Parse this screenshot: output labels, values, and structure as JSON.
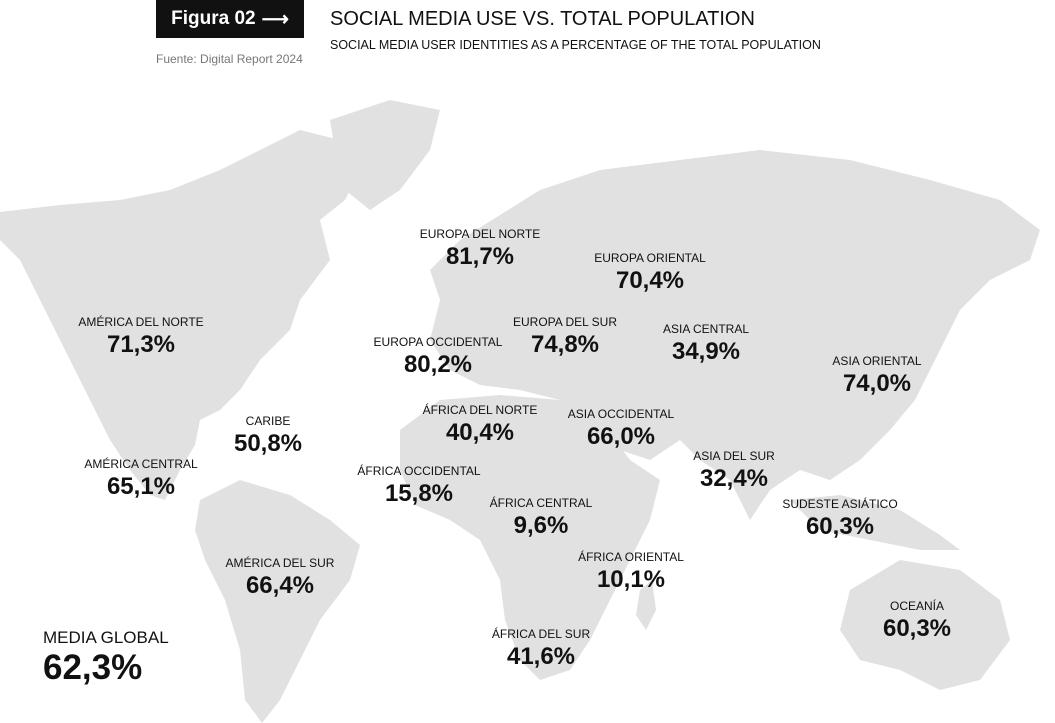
{
  "header": {
    "figure_label": "Figura 02",
    "arrow_icon": "right-arrow",
    "source": "Fuente: Digital Report 2024",
    "title": "SOCIAL MEDIA USE VS. TOTAL POPULATION",
    "subtitle": "SOCIAL MEDIA USER IDENTITIES AS A PERCENTAGE OF THE TOTAL POPULATION"
  },
  "colors": {
    "land": "#e1e1e1",
    "text": "#111111",
    "badge": "#111111"
  },
  "regions": [
    {
      "label": "EUROPA DEL NORTE",
      "value": "81,7%"
    },
    {
      "label": "EUROPA ORIENTAL",
      "value": "70,4%"
    },
    {
      "label": "AMÉRICA DEL NORTE",
      "value": "71,3%"
    },
    {
      "label": "EUROPA OCCIDENTAL",
      "value": "80,2%"
    },
    {
      "label": "EUROPA DEL SUR",
      "value": "74,8%"
    },
    {
      "label": "ASIA CENTRAL",
      "value": "34,9%"
    },
    {
      "label": "ASIA ORIENTAL",
      "value": "74,0%"
    },
    {
      "label": "CARIBE",
      "value": "50,8%"
    },
    {
      "label": "ÁFRICA DEL NORTE",
      "value": "40,4%"
    },
    {
      "label": "ASIA OCCIDENTAL",
      "value": "66,0%"
    },
    {
      "label": "AMÉRICA CENTRAL",
      "value": "65,1%"
    },
    {
      "label": "ÁFRICA OCCIDENTAL",
      "value": "15,8%"
    },
    {
      "label": "ASIA DEL SUR",
      "value": "32,4%"
    },
    {
      "label": "ÁFRICA CENTRAL",
      "value": "9,6%"
    },
    {
      "label": "SUDESTE ASIÁTICO",
      "value": "60,3%"
    },
    {
      "label": "ÁFRICA ORIENTAL",
      "value": "10,1%"
    },
    {
      "label": "AMÉRICA DEL SUR",
      "value": "66,4%"
    },
    {
      "label": "OCEANÍA",
      "value": "60,3%"
    },
    {
      "label": "ÁFRICA DEL SUR",
      "value": "41,6%"
    }
  ],
  "global": {
    "label": "MEDIA GLOBAL",
    "value": "62,3%"
  }
}
